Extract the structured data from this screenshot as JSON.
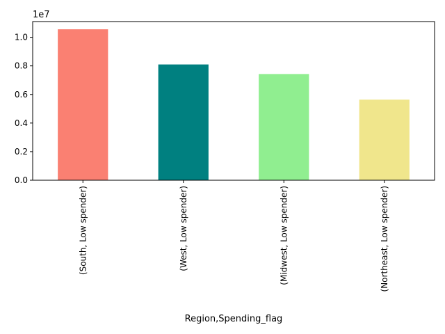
{
  "chart_data": {
    "type": "bar",
    "categories": [
      "(South, Low spender)",
      "(West, Low spender)",
      "(Midwest, Low spender)",
      "(Northeast, Low spender)"
    ],
    "values": [
      10560000,
      8100000,
      7430000,
      5640000
    ],
    "colors": [
      "#fa8072",
      "#008080",
      "#90ee90",
      "#f0e68c"
    ],
    "xlabel": "Region,Spending_flag",
    "ylabel": "",
    "title": "",
    "ylim": [
      0,
      11100000
    ],
    "yticks": [
      0,
      2000000,
      4000000,
      6000000,
      8000000,
      10000000
    ],
    "ytick_labels": [
      "0.0",
      "0.2",
      "0.4",
      "0.6",
      "0.8",
      "1.0"
    ],
    "scale_label": "1e7",
    "grid": false,
    "legend": false
  }
}
